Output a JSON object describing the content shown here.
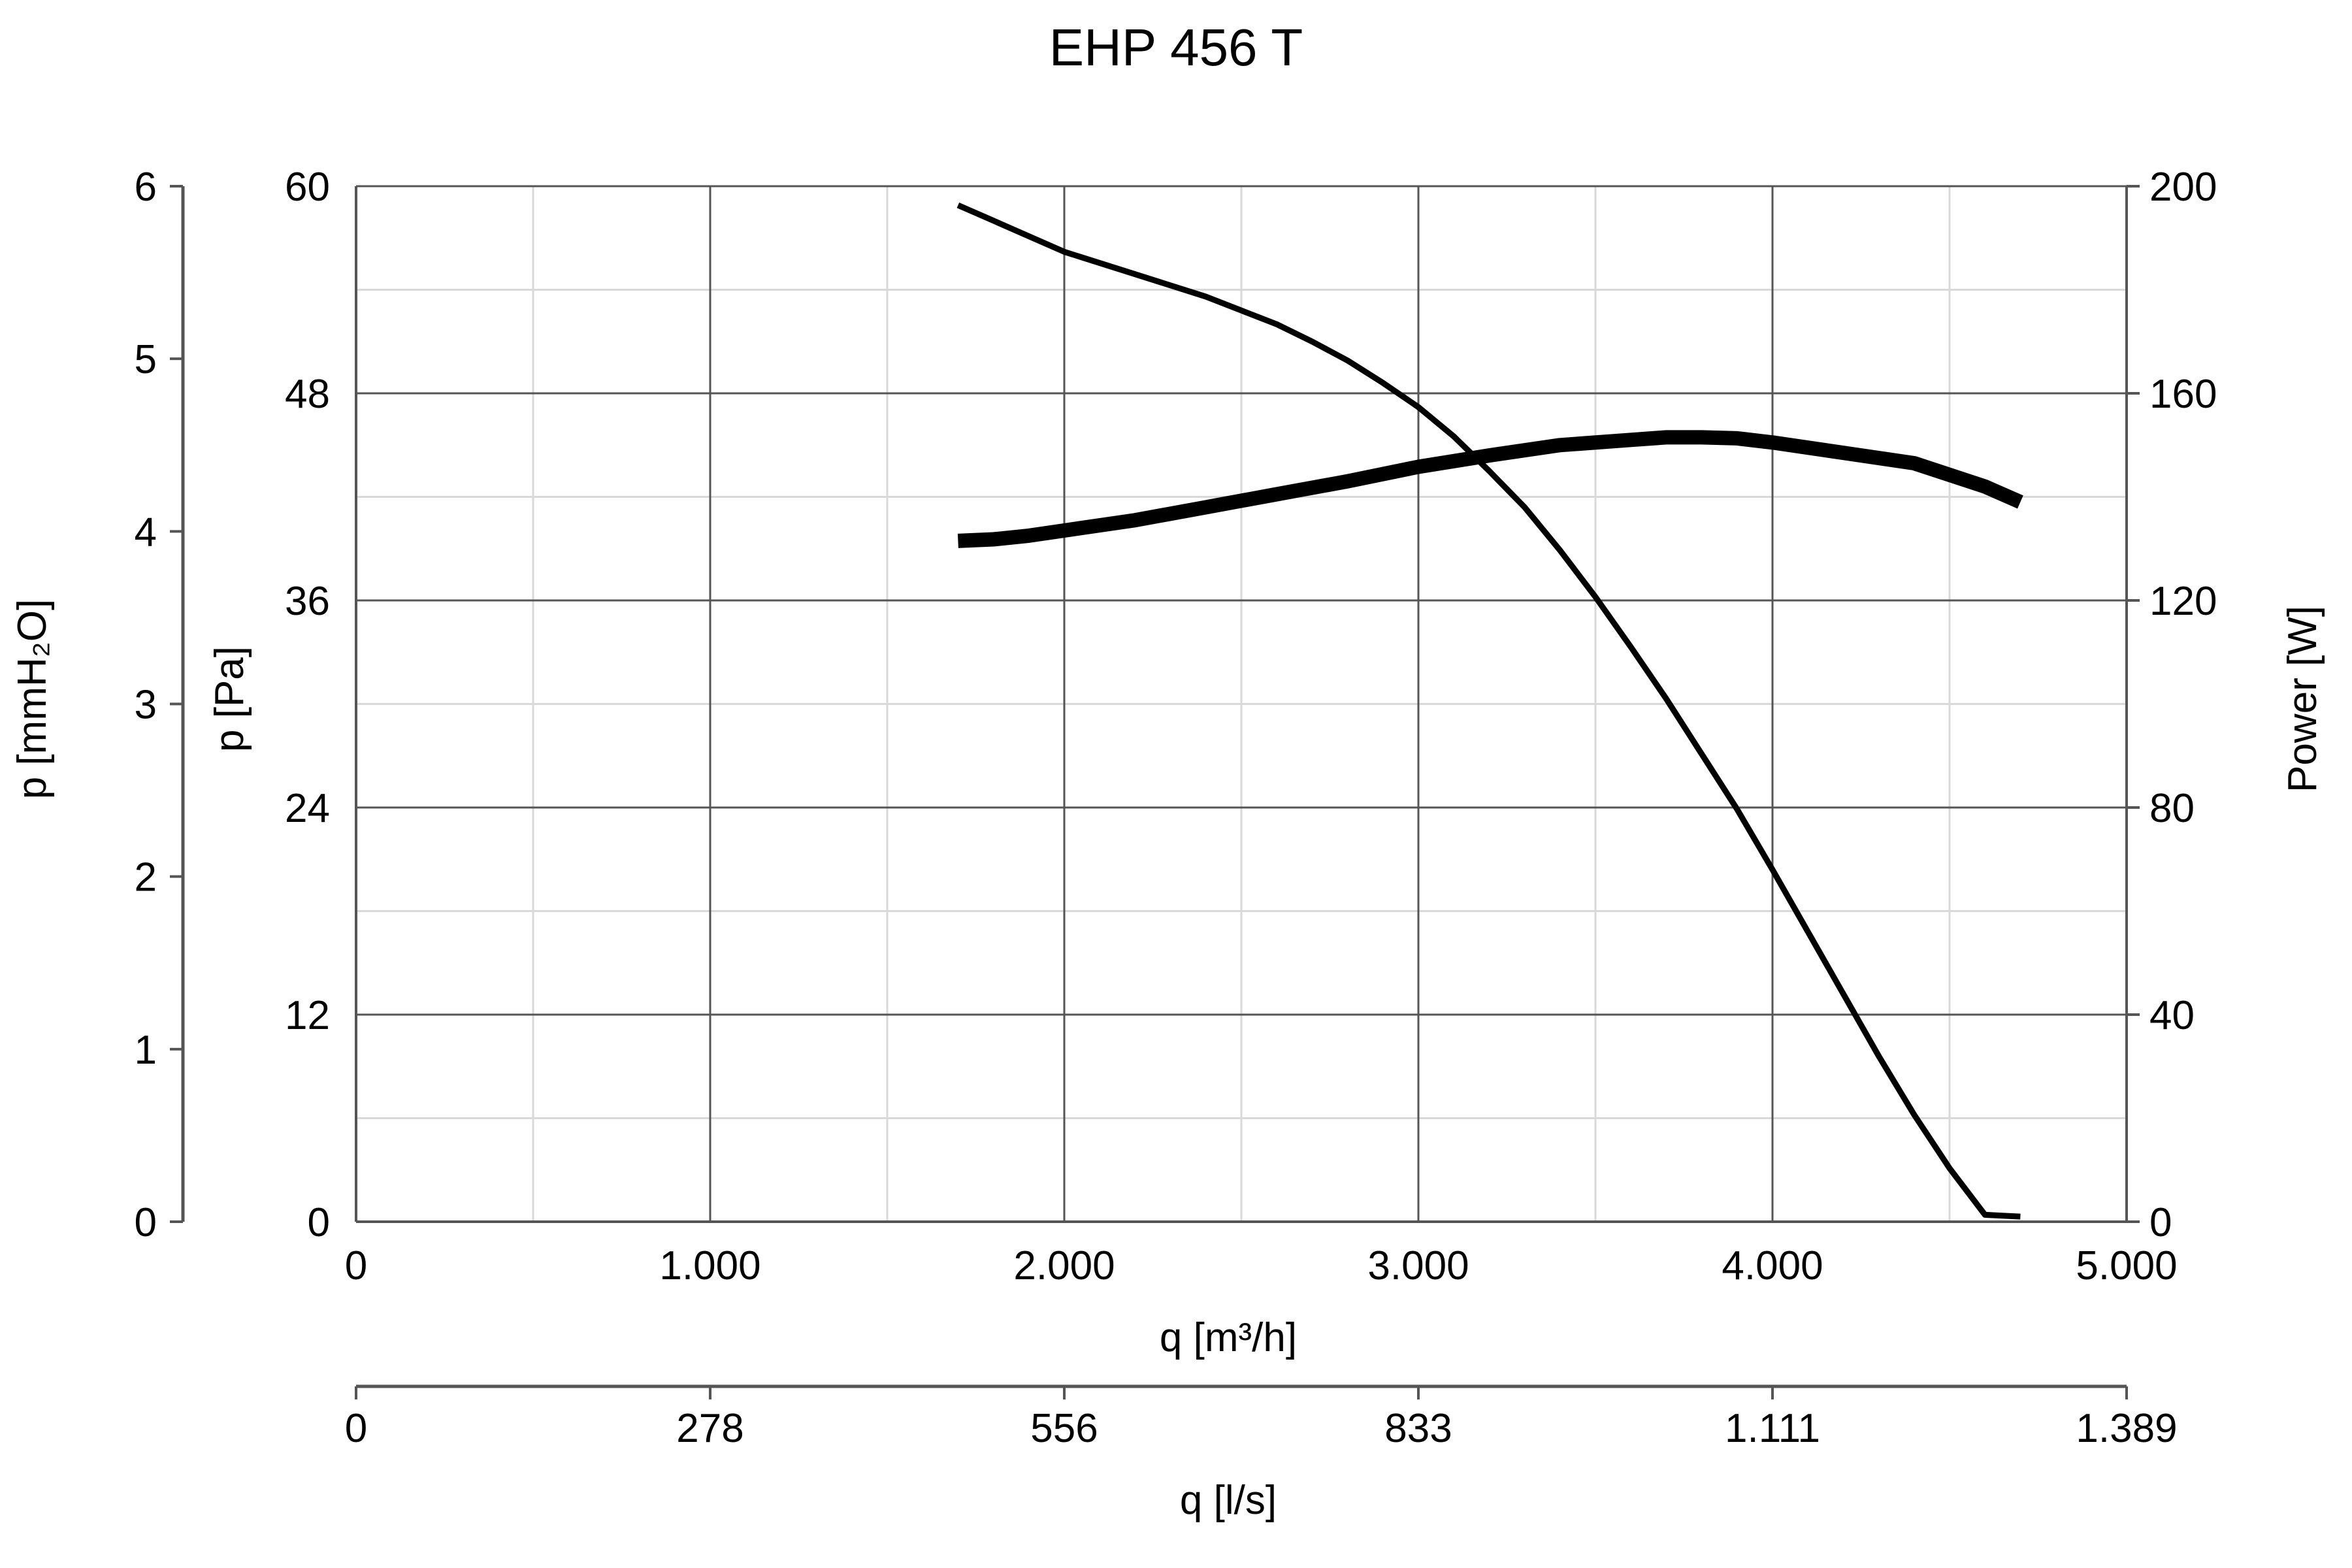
{
  "chart_data": {
    "type": "line",
    "title": "EHP 456 T",
    "xlabel": "q [m³/h]",
    "x_ticks": [
      "0",
      "1.000",
      "2.000",
      "3.000",
      "4.000",
      "5.000"
    ],
    "xlim": [
      0,
      5000
    ],
    "x2label": "q [l/s]",
    "x2_ticks": [
      "0",
      "278",
      "556",
      "833",
      "1.111",
      "1.389"
    ],
    "ylabel": "p [Pa]",
    "y_ticks": [
      "0",
      "12",
      "24",
      "36",
      "48",
      "60"
    ],
    "ylim": [
      0,
      60
    ],
    "y_outer_label": "p [mmH₂O]",
    "y_outer_ticks": [
      "0",
      "1",
      "2",
      "3",
      "4",
      "5",
      "6"
    ],
    "y2label": "Power [W]",
    "y2_ticks": [
      "0",
      "40",
      "80",
      "120",
      "160",
      "200"
    ],
    "y2lim": [
      0,
      200
    ],
    "grid": true,
    "series": [
      {
        "role": "pressure",
        "axis": "left",
        "x": [
          1700,
          1800,
          1900,
          2000,
          2200,
          2400,
          2500,
          2600,
          2700,
          2800,
          2900,
          3000,
          3100,
          3200,
          3300,
          3400,
          3500,
          3600,
          3700,
          3800,
          3900,
          4000,
          4100,
          4200,
          4300,
          4400,
          4500,
          4600,
          4700
        ],
        "values": [
          58.9,
          58.0,
          57.1,
          56.2,
          54.9,
          53.6,
          52.8,
          52.0,
          51.0,
          49.9,
          48.6,
          47.2,
          45.5,
          43.5,
          41.4,
          38.9,
          36.2,
          33.3,
          30.3,
          27.1,
          23.9,
          20.4,
          16.8,
          13.2,
          9.6,
          6.2,
          3.1,
          0.4,
          0.3
        ],
        "color": "#000000"
      },
      {
        "role": "power",
        "axis": "right",
        "x": [
          1700,
          1800,
          1900,
          2000,
          2200,
          2400,
          2600,
          2800,
          3000,
          3200,
          3400,
          3600,
          3700,
          3800,
          3900,
          4000,
          4200,
          4400,
          4600,
          4700
        ],
        "values": [
          131.5,
          131.8,
          132.5,
          133.5,
          135.5,
          138.0,
          140.5,
          143.0,
          145.8,
          148.0,
          150.0,
          151.0,
          151.5,
          151.5,
          151.3,
          150.5,
          148.5,
          146.5,
          142.0,
          139.0
        ],
        "color": "#000000"
      }
    ]
  }
}
